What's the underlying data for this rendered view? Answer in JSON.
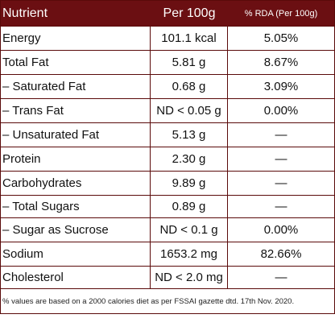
{
  "header": {
    "nutrient": "Nutrient",
    "per100g": "Per 100g",
    "rda": "% RDA (Per 100g)"
  },
  "rows": [
    {
      "nutrient": "Energy",
      "value": "101.1 kcal",
      "rda": "5.05%"
    },
    {
      "nutrient": "Total Fat",
      "value": "5.81 g",
      "rda": "8.67%"
    },
    {
      "nutrient": "– Saturated Fat",
      "value": "0.68 g",
      "rda": "3.09%"
    },
    {
      "nutrient": "– Trans Fat",
      "value": "ND < 0.05 g",
      "rda": "0.00%"
    },
    {
      "nutrient": "– Unsaturated Fat",
      "value": "5.13 g",
      "rda": "—"
    },
    {
      "nutrient": "Protein",
      "value": "2.30 g",
      "rda": "—"
    },
    {
      "nutrient": "Carbohydrates",
      "value": "9.89 g",
      "rda": "—"
    },
    {
      "nutrient": "– Total Sugars",
      "value": "0.89 g",
      "rda": "—"
    },
    {
      "nutrient": "– Sugar as Sucrose",
      "value": "ND < 0.1 g",
      "rda": "0.00%"
    },
    {
      "nutrient": "Sodium",
      "value": "1653.2 mg",
      "rda": "82.66%"
    },
    {
      "nutrient": "Cholesterol",
      "value": "ND < 2.0 mg",
      "rda": "—"
    }
  ],
  "footnote": "% values are based on a 2000 calories diet as per FSSAI gazette dtd. 17th Nov. 2020.",
  "colors": {
    "header_bg": "#6b0f12",
    "border": "#5a0a0a"
  }
}
